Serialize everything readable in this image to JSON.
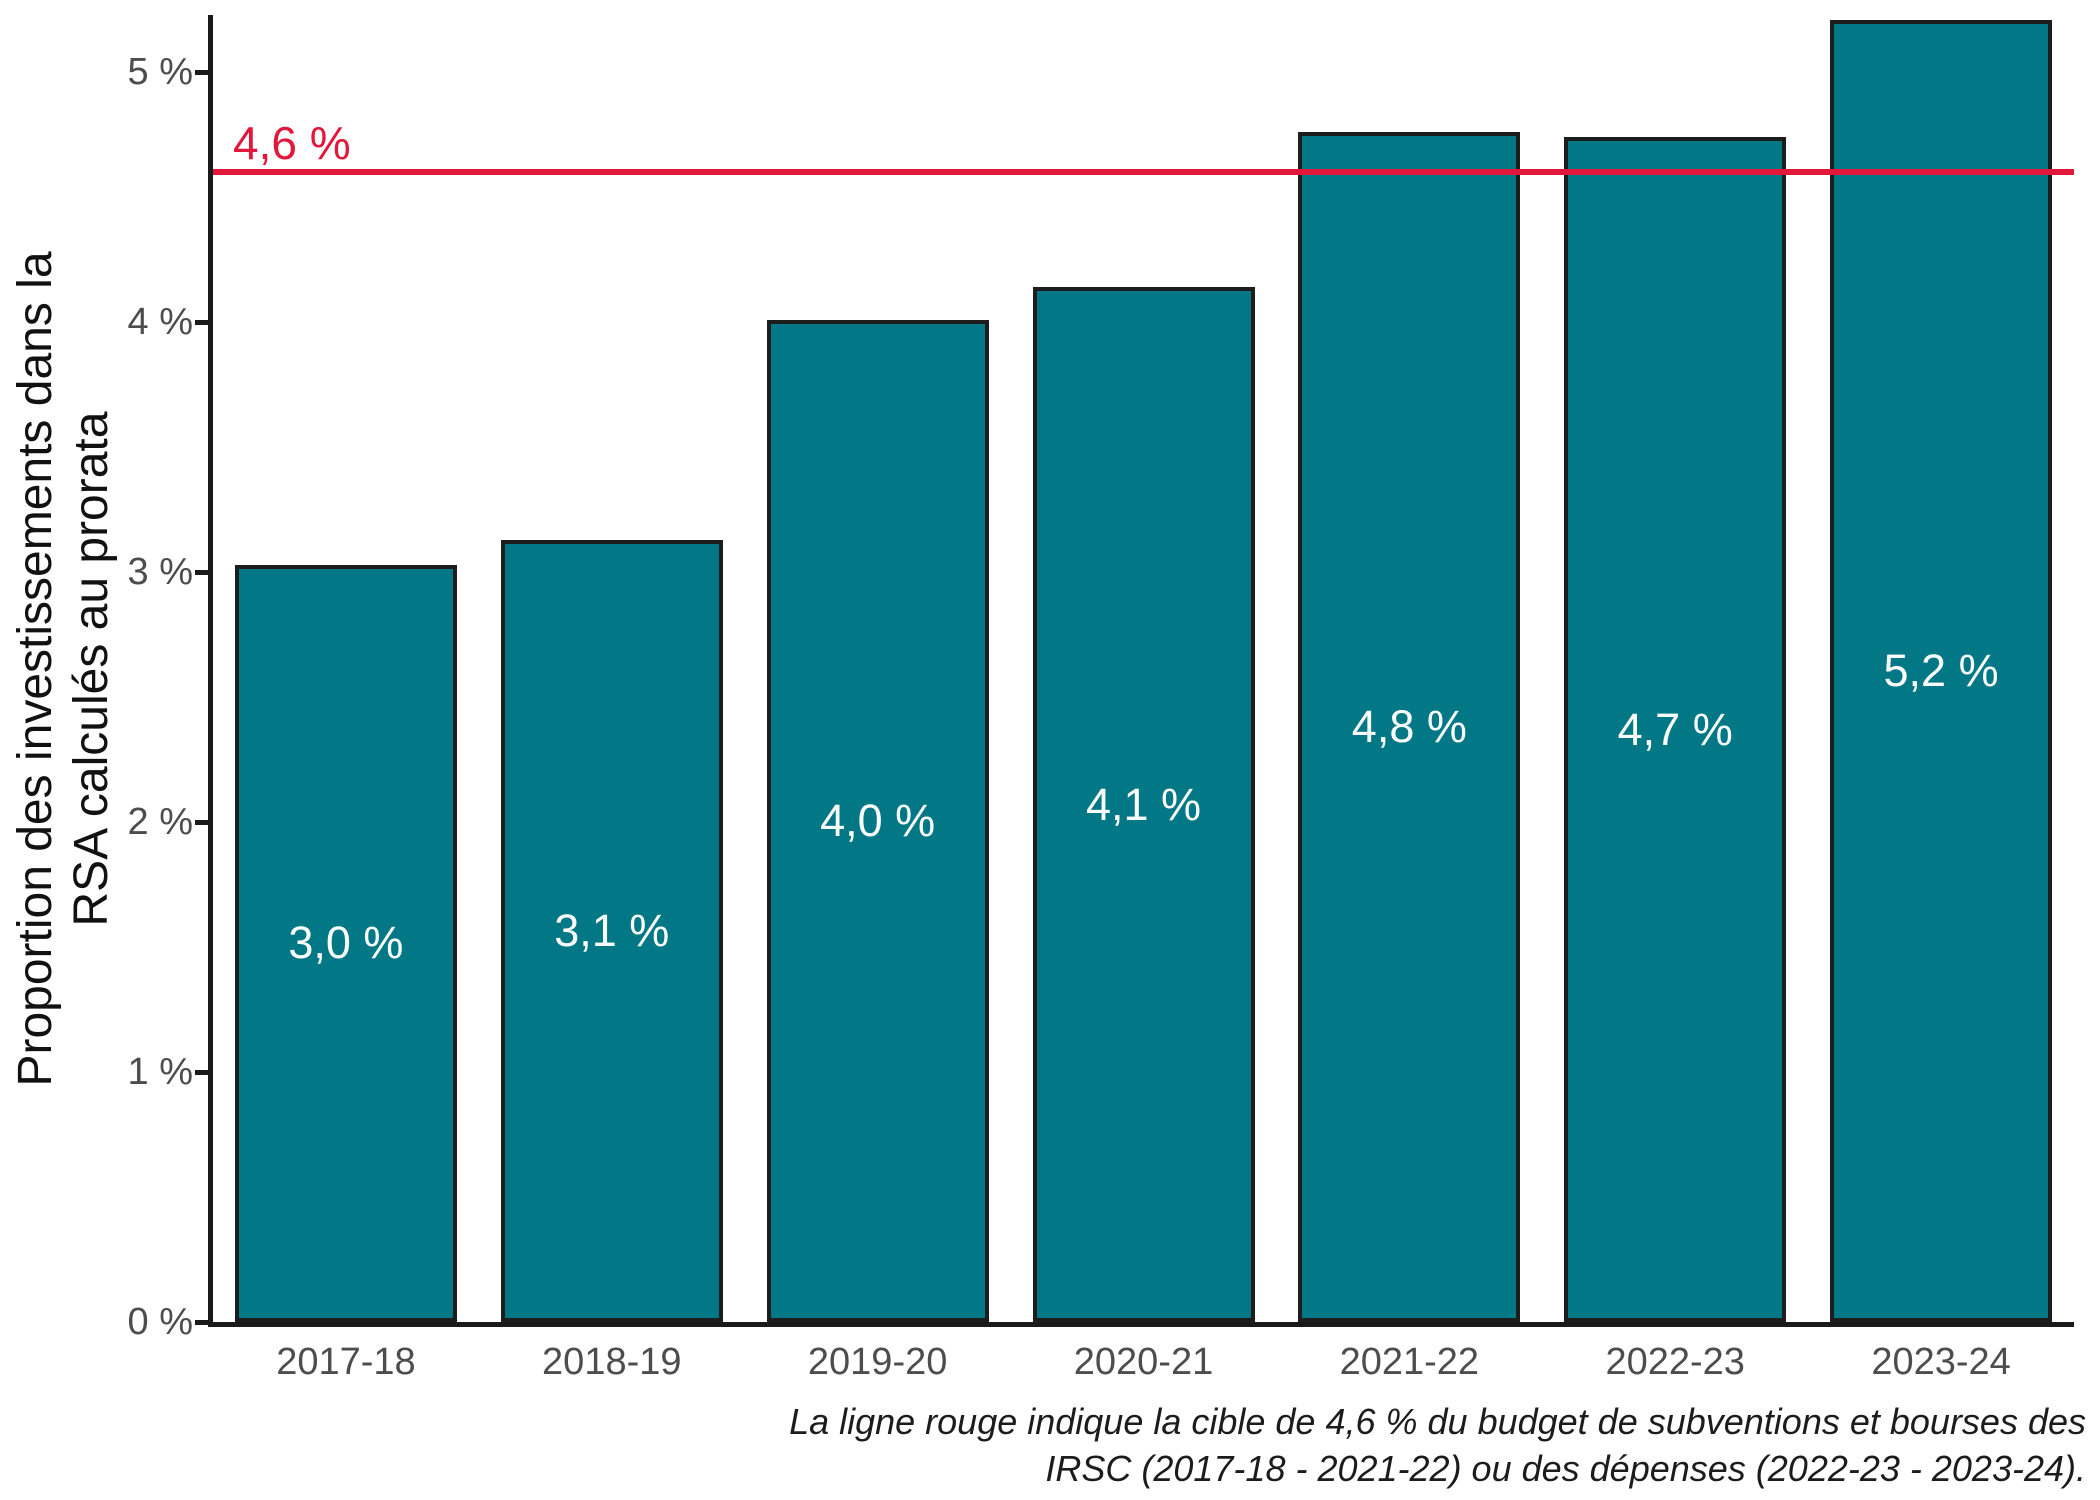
{
  "chart_data": {
    "type": "bar",
    "categories": [
      "2017-18",
      "2018-19",
      "2019-20",
      "2020-21",
      "2021-22",
      "2022-23",
      "2023-24"
    ],
    "values": [
      3.03,
      3.13,
      4.01,
      4.14,
      4.76,
      4.74,
      5.21
    ],
    "value_labels": [
      "3,0 %",
      "3,1 %",
      "4,0 %",
      "4,1 %",
      "4,8 %",
      "4,7 %",
      "5,2 %"
    ],
    "title": "",
    "xlabel": "",
    "ylabel": "Proportion des investissements dans la RSA calculés au prorata",
    "ylabel_lines": [
      "Proportion des investissements dans la",
      "RSA calculés au prorata"
    ],
    "ylim": [
      0,
      5.23
    ],
    "yticks": [
      0,
      1,
      2,
      3,
      4,
      5
    ],
    "ytick_labels": [
      "0 %",
      "1 %",
      "2 %",
      "3 %",
      "4 %",
      "5 %"
    ],
    "grid": false,
    "legend_position": "none",
    "target_line": {
      "value": 4.6,
      "label": "4,6 %"
    },
    "caption_lines": [
      "La ligne rouge indique la cible de 4,6 % du budget de subventions et bourses des",
      "IRSC (2017-18 - 2021-22) ou des dépenses (2022-23 - 2023-24)."
    ]
  },
  "colors": {
    "bar_fill": "#027886",
    "bar_stroke": "#1d1d1d",
    "target_red": "#e1183c",
    "axis_text": "#4d4d4d",
    "axis_line": "#1a1a1a",
    "bar_label_text": "#ffffff",
    "title_text": "#111111",
    "background": "#ffffff"
  }
}
